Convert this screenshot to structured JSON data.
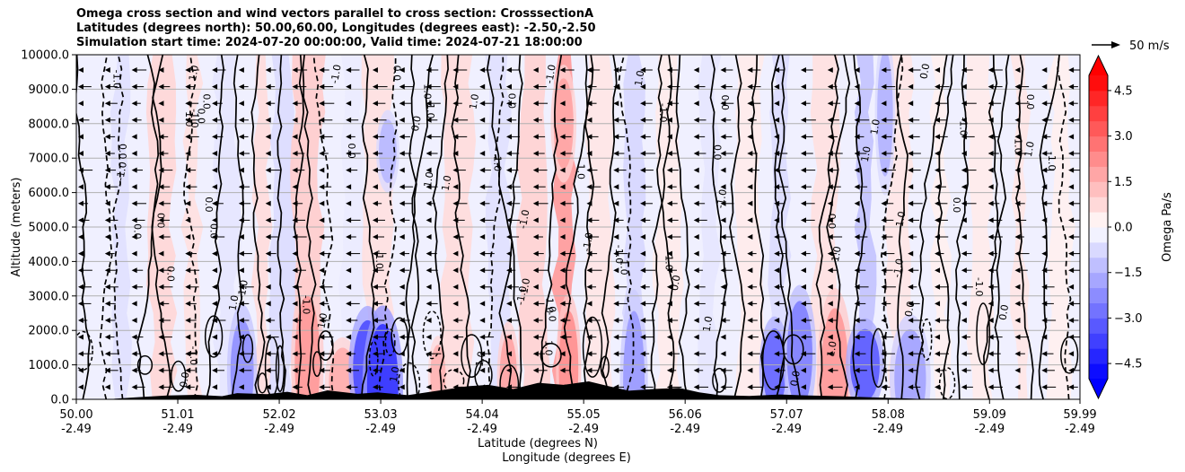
{
  "chart_data": {
    "type": "cross-section-contour",
    "title_lines": [
      "Omega cross section and wind vectors parallel to cross section: CrosssectionA",
      "Latitudes (degrees north): 50.00,60.00, Longitudes (degrees east): -2.50,-2.50",
      "Simulation start time: 2024-07-20 00:00:00, Valid time: 2024-07-21 18:00:00"
    ],
    "ylabel": "Altitude (meters)",
    "xlabel_lat": "Latitude (degrees N)",
    "xlabel_lon": "Longitude (degrees E)",
    "ylim": [
      0,
      10000
    ],
    "yticks": [
      "0.0",
      "1000.0",
      "2000.0",
      "3000.0",
      "4000.0",
      "5000.0",
      "6000.0",
      "7000.0",
      "8000.0",
      "9000.0",
      "10000.0"
    ],
    "ytick_values": [
      0,
      1000,
      2000,
      3000,
      4000,
      5000,
      6000,
      7000,
      8000,
      9000,
      10000
    ],
    "xlim": [
      50.0,
      59.99
    ],
    "xtick_values": [
      50.0,
      51.01,
      52.02,
      53.03,
      54.04,
      55.05,
      56.06,
      57.07,
      58.08,
      59.09,
      59.99
    ],
    "xticks_lat": [
      "50.00",
      "51.01",
      "52.02",
      "53.03",
      "54.04",
      "55.05",
      "56.06",
      "57.07",
      "58.08",
      "59.09",
      "59.99"
    ],
    "xticks_lon": [
      "-2.49",
      "-2.49",
      "-2.49",
      "-2.49",
      "-2.49",
      "-2.49",
      "-2.49",
      "-2.49",
      "-2.49",
      "-2.49",
      "-2.49"
    ],
    "grid": "horizontal",
    "colorbar": {
      "label": "Omega Pa/s",
      "range": [
        -5.0,
        5.0
      ],
      "ticks": [
        "4.5",
        "3.0",
        "1.5",
        "0.0",
        "−1.5",
        "−3.0",
        "−4.5"
      ],
      "tick_values": [
        4.5,
        3.0,
        1.5,
        0.0,
        -1.5,
        -3.0,
        -4.5
      ],
      "cmap": "bwr",
      "extend": "both"
    },
    "quiver_key": "50 m/s",
    "contour_label_values": [
      "0.0",
      "1.0",
      "-1.0"
    ],
    "vertical_bands": [
      {
        "lat": 50.15,
        "omega": -0.3
      },
      {
        "lat": 50.45,
        "omega": -0.6
      },
      {
        "lat": 50.85,
        "omega": 0.8
      },
      {
        "lat": 51.15,
        "omega": 0.6
      },
      {
        "lat": 51.5,
        "omega": -0.5
      },
      {
        "lat": 51.85,
        "omega": 0.7
      },
      {
        "lat": 52.05,
        "omega": -0.7
      },
      {
        "lat": 52.3,
        "omega": 1.0
      },
      {
        "lat": 52.75,
        "omega": -0.4
      },
      {
        "lat": 53.0,
        "omega": 0.6
      },
      {
        "lat": 53.4,
        "omega": -0.3
      },
      {
        "lat": 53.8,
        "omega": 0.7
      },
      {
        "lat": 54.2,
        "omega": -0.6
      },
      {
        "lat": 54.55,
        "omega": 0.9
      },
      {
        "lat": 54.85,
        "omega": 2.0
      },
      {
        "lat": 55.2,
        "omega": 0.5
      },
      {
        "lat": 55.55,
        "omega": -0.8
      },
      {
        "lat": 55.9,
        "omega": 0.4
      },
      {
        "lat": 56.3,
        "omega": -0.5
      },
      {
        "lat": 56.7,
        "omega": 0.4
      },
      {
        "lat": 57.0,
        "omega": -0.7
      },
      {
        "lat": 57.45,
        "omega": 0.6
      },
      {
        "lat": 57.85,
        "omega": -1.2
      },
      {
        "lat": 58.2,
        "omega": 0.5
      },
      {
        "lat": 58.6,
        "omega": 0.3
      },
      {
        "lat": 59.0,
        "omega": 0.4
      },
      {
        "lat": 59.4,
        "omega": 0.5
      },
      {
        "lat": 59.8,
        "omega": 0.2
      }
    ],
    "low_level_cells": [
      {
        "lat": 51.65,
        "alt": 800,
        "omega": -2.2
      },
      {
        "lat": 52.3,
        "alt": 1100,
        "omega": 2.0
      },
      {
        "lat": 52.65,
        "alt": 500,
        "omega": 1.6
      },
      {
        "lat": 52.9,
        "alt": 900,
        "omega": -3.5
      },
      {
        "lat": 53.05,
        "alt": 400,
        "omega": -4.0
      },
      {
        "lat": 53.6,
        "alt": 700,
        "omega": 1.5
      },
      {
        "lat": 54.3,
        "alt": 600,
        "omega": 1.8
      },
      {
        "lat": 54.9,
        "alt": 900,
        "omega": 2.2
      },
      {
        "lat": 55.55,
        "alt": 500,
        "omega": -2.0
      },
      {
        "lat": 56.95,
        "alt": 900,
        "omega": -3.0
      },
      {
        "lat": 57.2,
        "alt": 1300,
        "omega": -2.5
      },
      {
        "lat": 57.55,
        "alt": 700,
        "omega": 2.0
      },
      {
        "lat": 57.85,
        "alt": 1000,
        "omega": -3.2
      },
      {
        "lat": 58.3,
        "alt": 600,
        "omega": -1.8
      },
      {
        "lat": 58.05,
        "alt": 8300,
        "omega": -1.5
      },
      {
        "lat": 53.1,
        "alt": 7200,
        "omega": -1.4
      },
      {
        "lat": 54.85,
        "alt": 8000,
        "omega": 1.8
      }
    ],
    "terrain": [
      {
        "lat": 50.0,
        "alt": 0
      },
      {
        "lat": 50.3,
        "alt": 0
      },
      {
        "lat": 50.6,
        "alt": 60
      },
      {
        "lat": 50.9,
        "alt": 110
      },
      {
        "lat": 51.2,
        "alt": 130
      },
      {
        "lat": 51.45,
        "alt": 90
      },
      {
        "lat": 51.6,
        "alt": 180
      },
      {
        "lat": 51.9,
        "alt": 150
      },
      {
        "lat": 52.1,
        "alt": 220
      },
      {
        "lat": 52.3,
        "alt": 120
      },
      {
        "lat": 52.5,
        "alt": 260
      },
      {
        "lat": 52.8,
        "alt": 160
      },
      {
        "lat": 53.0,
        "alt": 200
      },
      {
        "lat": 53.3,
        "alt": 120
      },
      {
        "lat": 53.6,
        "alt": 250
      },
      {
        "lat": 53.9,
        "alt": 380
      },
      {
        "lat": 54.1,
        "alt": 420
      },
      {
        "lat": 54.35,
        "alt": 300
      },
      {
        "lat": 54.6,
        "alt": 480
      },
      {
        "lat": 54.85,
        "alt": 420
      },
      {
        "lat": 55.1,
        "alt": 520
      },
      {
        "lat": 55.3,
        "alt": 380
      },
      {
        "lat": 55.5,
        "alt": 250
      },
      {
        "lat": 55.75,
        "alt": 300
      },
      {
        "lat": 56.0,
        "alt": 330
      },
      {
        "lat": 56.2,
        "alt": 200
      },
      {
        "lat": 56.4,
        "alt": 120
      },
      {
        "lat": 56.7,
        "alt": 100
      },
      {
        "lat": 57.0,
        "alt": 140
      },
      {
        "lat": 57.3,
        "alt": 110
      },
      {
        "lat": 57.6,
        "alt": 90
      },
      {
        "lat": 57.9,
        "alt": 60
      },
      {
        "lat": 58.2,
        "alt": 30
      },
      {
        "lat": 58.5,
        "alt": 0
      },
      {
        "lat": 59.99,
        "alt": 0
      }
    ]
  }
}
